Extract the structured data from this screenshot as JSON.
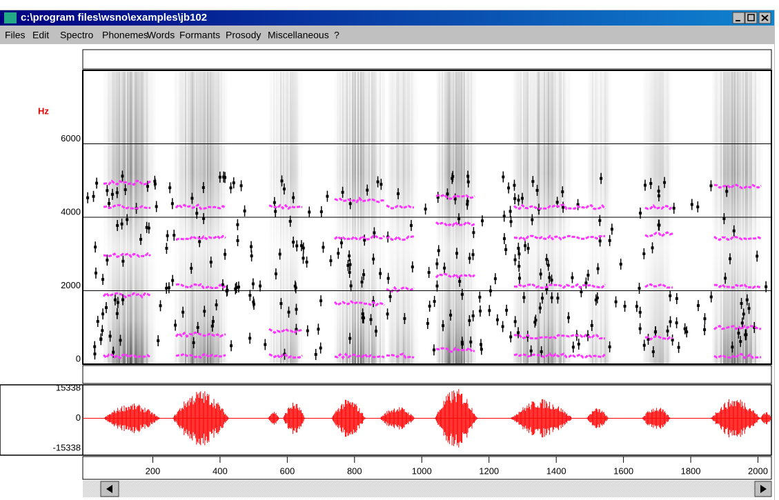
{
  "window": {
    "title": "c:\\program files\\wsno\\examples\\jb102"
  },
  "menu": [
    "Files",
    "Edit",
    "Spectro",
    "Phonemes",
    "Words",
    "Formants",
    "Prosody",
    "Miscellaneous",
    "?"
  ],
  "spectrogram": {
    "unit": "Hz",
    "ylim": [
      0,
      8000
    ],
    "yticks": [
      0,
      2000,
      4000,
      6000
    ],
    "grid": true
  },
  "waveform": {
    "ylim": [
      -15338,
      15338
    ],
    "yticks": [
      15338,
      0,
      -15338
    ],
    "color": "#ff0000"
  },
  "time_axis": {
    "xlim": [
      0,
      2040
    ],
    "xticks": [
      200,
      400,
      600,
      800,
      1000,
      1200,
      1400,
      1600,
      1800,
      2000
    ]
  }
}
